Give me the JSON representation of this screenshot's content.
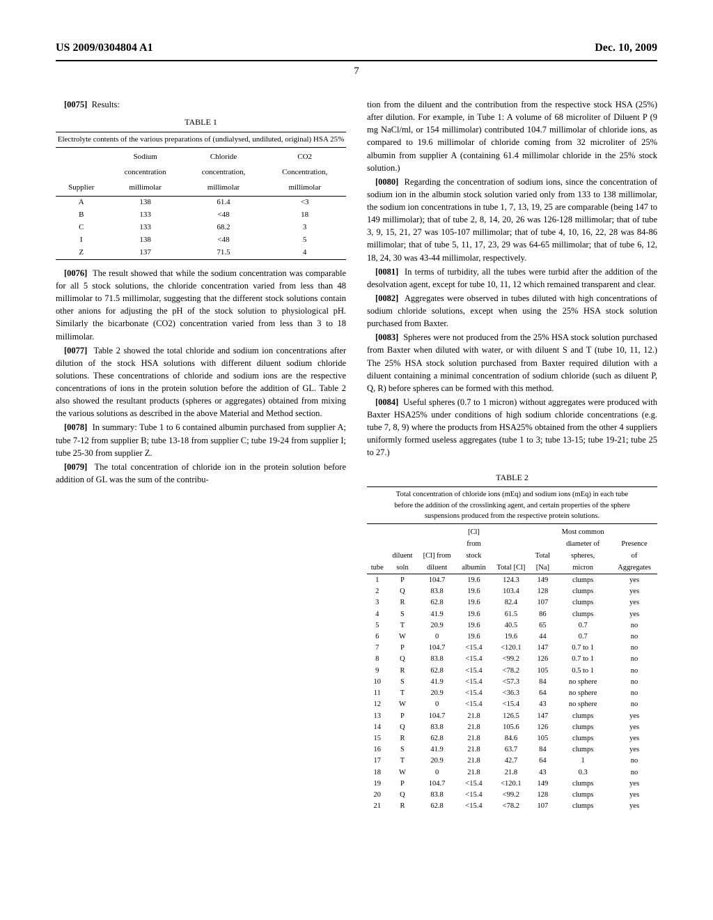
{
  "header": {
    "left": "US 2009/0304804 A1",
    "right": "Dec. 10, 2009"
  },
  "page_number": "7",
  "left_col": {
    "p0075": "Results:",
    "table1": {
      "caption": "TABLE 1",
      "subcaption": "Electrolyte contents of the various preparations of (undialysed, undiluted, original) HSA 25%",
      "headers": [
        "Supplier",
        "Sodium concentration millimolar",
        "Chloride concentration, millimolar",
        "CO2 Concentration, millimolar"
      ],
      "headers_row1": [
        "",
        "Sodium",
        "Chloride",
        "CO2"
      ],
      "headers_row2": [
        "",
        "concentration",
        "concentration,",
        "Concentration,"
      ],
      "headers_row3": [
        "Supplier",
        "millimolar",
        "millimolar",
        "millimolar"
      ],
      "rows": [
        [
          "A",
          "138",
          "61.4",
          "<3"
        ],
        [
          "B",
          "133",
          "<48",
          "18"
        ],
        [
          "C",
          "133",
          "68.2",
          "3"
        ],
        [
          "I",
          "138",
          "<48",
          "5"
        ],
        [
          "Z",
          "137",
          "71.5",
          "4"
        ]
      ]
    },
    "p0076": "The result showed that while the sodium concentration was comparable for all 5 stock solutions, the chloride concentration varied from less than 48 millimolar to 71.5 millimolar, suggesting that the different stock solutions contain other anions for adjusting the pH of the stock solution to physiological pH. Similarly the bicarbonate (CO2) concentration varied from less than 3 to 18 millimolar.",
    "p0077": "Table 2 showed the total chloride and sodium ion concentrations after dilution of the stock HSA solutions with different diluent sodium chloride solutions. These concentrations of chloride and sodium ions are the respective concentrations of ions in the protein solution before the addition of GL. Table 2 also showed the resultant products (spheres or aggregates) obtained from mixing the various solutions as described in the above Material and Method section.",
    "p0078": "In summary: Tube 1 to 6 contained albumin purchased from supplier A; tube 7-12 from supplier B; tube 13-18 from supplier C; tube 19-24 from supplier I; tube 25-30 from supplier Z.",
    "p0079": "The total concentration of chloride ion in the protein solution before addition of GL was the sum of the contribu-"
  },
  "right_col": {
    "p_cont": "tion from the diluent and the contribution from the respective stock HSA (25%) after dilution. For example, in Tube 1: A volume of 68 microliter of Diluent P (9 mg NaCl/ml, or 154 millimolar) contributed 104.7 millimolar of chloride ions, as compared to 19.6 millimolar of chloride coming from 32 microliter of 25% albumin from supplier A (containing 61.4 millimolar chloride in the 25% stock solution.)",
    "p0080": "Regarding the concentration of sodium ions, since the concentration of sodium ion in the albumin stock solution varied only from 133 to 138 millimolar, the sodium ion concentrations in tube 1, 7, 13, 19, 25 are comparable (being 147 to 149 millimolar); that of tube 2, 8, 14, 20, 26 was 126-128 millimolar; that of tube 3, 9, 15, 21, 27 was 105-107 millimolar; that of tube 4, 10, 16, 22, 28 was 84-86 millimolar; that of tube 5, 11, 17, 23, 29 was 64-65 millimolar; that of tube 6, 12, 18, 24, 30 was 43-44 millimolar, respectively.",
    "p0081": "In terms of turbidity, all the tubes were turbid after the addition of the desolvation agent, except for tube 10, 11, 12 which remained transparent and clear.",
    "p0082": "Aggregates were observed in tubes diluted with high concentrations of sodium chloride solutions, except when using the 25% HSA stock solution purchased from Baxter.",
    "p0083": "Spheres were not produced from the 25% HSA stock solution purchased from Baxter when diluted with water, or with diluent S and T (tube 10, 11, 12.) The 25% HSA stock solution purchased from Baxter required dilution with a diluent containing a minimal concentration of sodium chloride (such as diluent P, Q, R) before spheres can be formed with this method.",
    "p0084": "Useful spheres (0.7 to 1 micron) without aggregates were produced with Baxter HSA25% under conditions of high sodium chloride concentrations (e.g. tube 7, 8, 9) where the products from HSA25% obtained from the other 4 suppliers uniformly formed useless aggregates (tube 1 to 3; tube 13-15; tube 19-21; tube 25 to 27.)"
  },
  "table2": {
    "caption": "TABLE 2",
    "subcaption1": "Total concentration of chloride ions (mEq) and sodium ions (mEq) in each tube",
    "subcaption2": "before the addition of the crosslinking agent, and certain properties of the sphere",
    "subcaption3": "suspensions produced from the respective protein solutions.",
    "headers_r1": [
      "",
      "",
      "",
      "[Cl]",
      "",
      "",
      "Most common",
      ""
    ],
    "headers_r2": [
      "",
      "",
      "",
      "from",
      "",
      "",
      "diameter of",
      "Presence"
    ],
    "headers_r3": [
      "",
      "diluent",
      "[Cl] from",
      "stock",
      "",
      "Total",
      "spheres,",
      "of"
    ],
    "headers_r4": [
      "tube",
      "soln",
      "diluent",
      "albumin",
      "Total [Cl]",
      "[Na]",
      "micron",
      "Aggregates"
    ],
    "rows": [
      [
        "1",
        "P",
        "104.7",
        "19.6",
        "124.3",
        "149",
        "clumps",
        "yes"
      ],
      [
        "2",
        "Q",
        "83.8",
        "19.6",
        "103.4",
        "128",
        "clumps",
        "yes"
      ],
      [
        "3",
        "R",
        "62.8",
        "19.6",
        "82.4",
        "107",
        "clumps",
        "yes"
      ],
      [
        "4",
        "S",
        "41.9",
        "19.6",
        "61.5",
        "86",
        "clumps",
        "yes"
      ],
      [
        "5",
        "T",
        "20.9",
        "19.6",
        "40.5",
        "65",
        "0.7",
        "no"
      ],
      [
        "6",
        "W",
        "0",
        "19.6",
        "19.6",
        "44",
        "0.7",
        "no"
      ],
      [
        "7",
        "P",
        "104.7",
        "<15.4",
        "<120.1",
        "147",
        "0.7 to 1",
        "no"
      ],
      [
        "8",
        "Q",
        "83.8",
        "<15.4",
        "<99.2",
        "126",
        "0.7 to 1",
        "no"
      ],
      [
        "9",
        "R",
        "62.8",
        "<15.4",
        "<78.2",
        "105",
        "0.5 to 1",
        "no"
      ],
      [
        "10",
        "S",
        "41.9",
        "<15.4",
        "<57.3",
        "84",
        "no sphere",
        "no"
      ],
      [
        "11",
        "T",
        "20.9",
        "<15.4",
        "<36.3",
        "64",
        "no sphere",
        "no"
      ],
      [
        "12",
        "W",
        "0",
        "<15.4",
        "<15.4",
        "43",
        "no sphere",
        "no"
      ],
      [
        "13",
        "P",
        "104.7",
        "21.8",
        "126.5",
        "147",
        "clumps",
        "yes"
      ],
      [
        "14",
        "Q",
        "83.8",
        "21.8",
        "105.6",
        "126",
        "clumps",
        "yes"
      ],
      [
        "15",
        "R",
        "62.8",
        "21.8",
        "84.6",
        "105",
        "clumps",
        "yes"
      ],
      [
        "16",
        "S",
        "41.9",
        "21.8",
        "63.7",
        "84",
        "clumps",
        "yes"
      ],
      [
        "17",
        "T",
        "20.9",
        "21.8",
        "42.7",
        "64",
        "1",
        "no"
      ],
      [
        "18",
        "W",
        "0",
        "21.8",
        "21.8",
        "43",
        "0.3",
        "no"
      ],
      [
        "19",
        "P",
        "104.7",
        "<15.4",
        "<120.1",
        "149",
        "clumps",
        "yes"
      ],
      [
        "20",
        "Q",
        "83.8",
        "<15.4",
        "<99.2",
        "128",
        "clumps",
        "yes"
      ],
      [
        "21",
        "R",
        "62.8",
        "<15.4",
        "<78.2",
        "107",
        "clumps",
        "yes"
      ]
    ]
  }
}
